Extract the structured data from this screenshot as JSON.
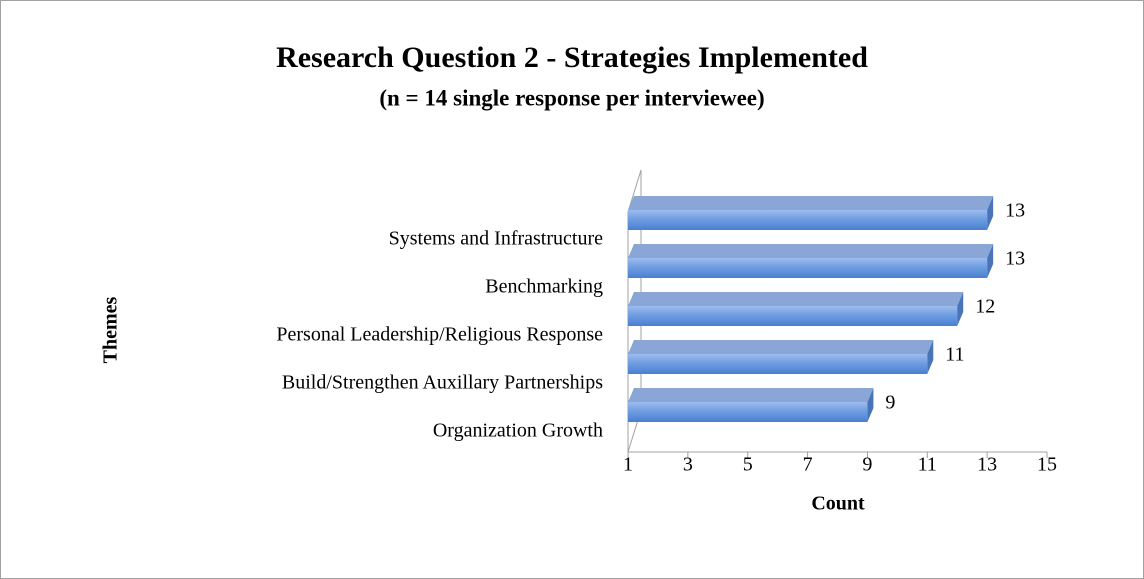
{
  "chart_data": {
    "type": "bar",
    "orientation": "horizontal",
    "title": "Research Question 2 - Strategies Implemented",
    "subtitle": "(n = 14 single response per interviewee)",
    "x_label": "Count",
    "y_label": "Themes",
    "categories": [
      "Systems and Infrastructure",
      "Benchmarking",
      "Personal Leadership/Religious Response",
      "Build/Strengthen Auxillary Partnerships",
      "Organization Growth"
    ],
    "values": [
      13,
      13,
      12,
      11,
      9
    ],
    "color": "#5b8fdb",
    "xlim": [
      1,
      15
    ],
    "xticks": [
      1,
      3,
      5,
      7,
      9,
      11,
      13,
      15
    ],
    "grid": false
  }
}
